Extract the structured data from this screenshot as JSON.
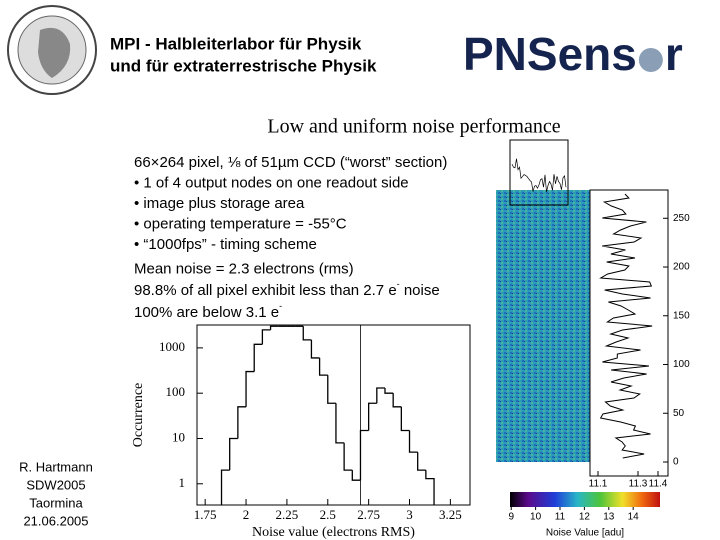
{
  "header": {
    "line1": "MPI  -   Halbleiterlabor für Physik",
    "line2": "und für extraterrestrische Physik"
  },
  "logo": {
    "left": "PNSens",
    "right": "r"
  },
  "title": "Low and uniform noise performance",
  "text": {
    "lines": [
      "66×264 pixel, ⅛ of 51µm CCD (“worst” section)",
      "• 1 of 4 output nodes on one readout side",
      "• image plus storage area",
      "• operating temperature = -55°C",
      "• “1000fps” - timing scheme",
      "Mean noise = 2.3 electrons (rms)"
    ],
    "line7": [
      "98.8% of all pixel exhibit less than 2.7 e",
      "-",
      " noise"
    ],
    "line8": [
      "100% are below 3.1 e",
      "-"
    ]
  },
  "footer": [
    "R. Hartmann",
    "SDW2005",
    "Taormina",
    "21.06.2005"
  ],
  "chart_data": [
    {
      "type": "histogram",
      "ylabel": "Occurrence",
      "xlabel": "Noise value (electrons RMS)",
      "bins": [
        1.85,
        1.9,
        1.95,
        2.0,
        2.05,
        2.1,
        2.15,
        2.2,
        2.25,
        2.3,
        2.35,
        2.4,
        2.45,
        2.5,
        2.55,
        2.6,
        2.65,
        2.7,
        2.75,
        2.8,
        2.85,
        2.9,
        2.95,
        3.0,
        3.05,
        3.1,
        3.15
      ],
      "values": [
        2,
        10,
        50,
        300,
        1200,
        2500,
        3000,
        3000,
        3000,
        3000,
        1500,
        600,
        250,
        60,
        8,
        2,
        1.2,
        15,
        60,
        130,
        100,
        50,
        15,
        5,
        2,
        1.3
      ],
      "color": "#000000",
      "log_y": true,
      "xlim": [
        1.7,
        3.37
      ],
      "xticks": [
        1.75,
        2.0,
        2.25,
        2.5,
        2.75,
        3.0,
        3.25
      ],
      "ylim": [
        0.34,
        3200
      ],
      "yticks": [
        1,
        10,
        100,
        1000
      ],
      "vline": 2.7
    },
    {
      "type": "noise-map",
      "ylim": [
        0,
        279
      ],
      "yticks": [
        0,
        50,
        100,
        150,
        200,
        250
      ],
      "xlim": [
        11.06,
        11.44
      ],
      "xticks": [
        11.1,
        11.3,
        11.4
      ],
      "clim": [
        8.95,
        15.1
      ],
      "cticks": [
        9,
        10,
        11,
        12,
        13,
        14
      ],
      "clabel": "Noise Value [adu]"
    }
  ]
}
